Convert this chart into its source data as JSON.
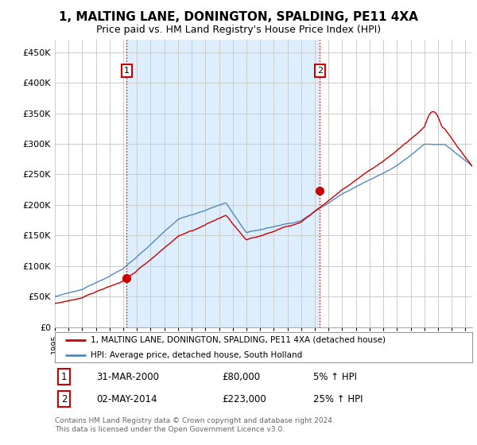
{
  "title": "1, MALTING LANE, DONINGTON, SPALDING, PE11 4XA",
  "subtitle": "Price paid vs. HM Land Registry's House Price Index (HPI)",
  "title_fontsize": 11,
  "subtitle_fontsize": 9,
  "ylabel_ticks": [
    "£0",
    "£50K",
    "£100K",
    "£150K",
    "£200K",
    "£250K",
    "£300K",
    "£350K",
    "£400K",
    "£450K"
  ],
  "ytick_values": [
    0,
    50000,
    100000,
    150000,
    200000,
    250000,
    300000,
    350000,
    400000,
    450000
  ],
  "ylim": [
    0,
    470000
  ],
  "xlim_start": 1995.0,
  "xlim_end": 2025.5,
  "line1_color": "#cc0000",
  "line2_color": "#5588bb",
  "shade_color": "#ddeeff",
  "vline_color": "#cc0000",
  "sale1_x": 2000.25,
  "sale1_y": 80000,
  "sale2_x": 2014.37,
  "sale2_y": 223000,
  "legend_line1": "1, MALTING LANE, DONINGTON, SPALDING, PE11 4XA (detached house)",
  "legend_line2": "HPI: Average price, detached house, South Holland",
  "table_row1": [
    "1",
    "31-MAR-2000",
    "£80,000",
    "5% ↑ HPI"
  ],
  "table_row2": [
    "2",
    "02-MAY-2014",
    "£223,000",
    "25% ↑ HPI"
  ],
  "footnote": "Contains HM Land Registry data © Crown copyright and database right 2024.\nThis data is licensed under the Open Government Licence v3.0.",
  "background_color": "#ffffff",
  "grid_color": "#cccccc"
}
